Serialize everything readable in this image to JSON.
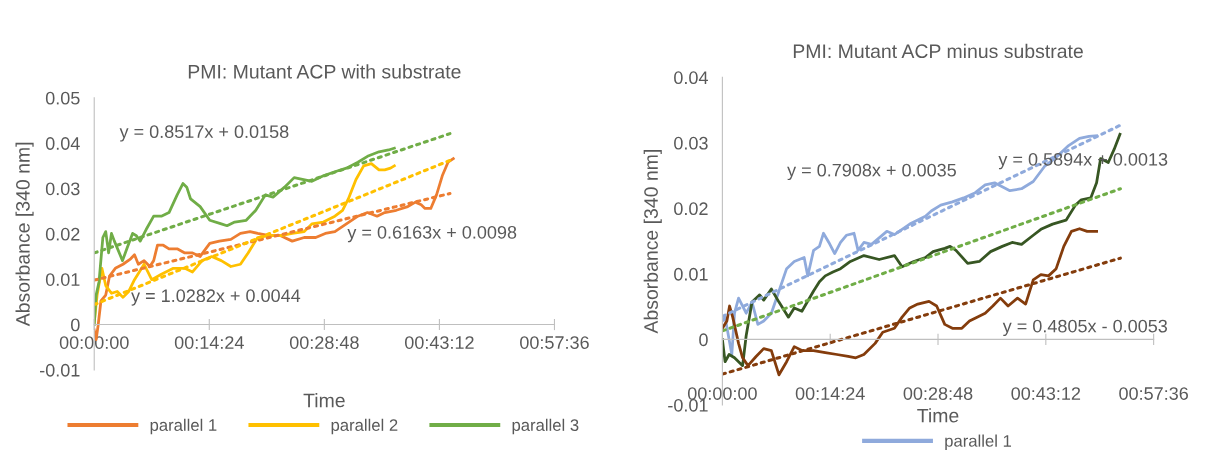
{
  "chart_data": [
    {
      "type": "line",
      "title": "PMI: Mutant ACP with substrate",
      "xlabel": "Time",
      "ylabel": "Absorbance [340 nm]",
      "xlim": [
        0,
        0.96
      ],
      "xticks": [
        {
          "value": 0,
          "label": "00:00:00"
        },
        {
          "value": 0.24,
          "label": "00:14:24"
        },
        {
          "value": 0.48,
          "label": "00:28:48"
        },
        {
          "value": 0.72,
          "label": "00:43:12"
        },
        {
          "value": 0.96,
          "label": "00:57:36"
        }
      ],
      "ylim": [
        -0.01,
        0.05
      ],
      "yticks": [
        -0.01,
        0,
        0.01,
        0.02,
        0.03,
        0.04,
        0.05
      ],
      "legend": "bottom",
      "marker": "none",
      "series": [
        {
          "name": "parallel 1",
          "color": "#ed7d31",
          "x": [
            0,
            0.004,
            0.008,
            0.014,
            0.024,
            0.032,
            0.044,
            0.06,
            0.076,
            0.084,
            0.092,
            0.104,
            0.116,
            0.124,
            0.132,
            0.144,
            0.156,
            0.173,
            0.189,
            0.205,
            0.221,
            0.229,
            0.241,
            0.261,
            0.285,
            0.305,
            0.325,
            0.341,
            0.365,
            0.389,
            0.413,
            0.438,
            0.462,
            0.482,
            0.502,
            0.526,
            0.55,
            0.57,
            0.59,
            0.606,
            0.63,
            0.654,
            0.67,
            0.682,
            0.69,
            0.702,
            0.714,
            0.726,
            0.738,
            0.749
          ],
          "values": [
            -0.0012,
            -0.0033,
            -0.0003,
            0.0052,
            0.0065,
            0.0107,
            0.0124,
            0.0133,
            0.0145,
            0.0154,
            0.0133,
            0.0141,
            0.0128,
            0.0141,
            0.0175,
            0.0175,
            0.0167,
            0.0167,
            0.0158,
            0.0158,
            0.015,
            0.0162,
            0.0179,
            0.0184,
            0.0188,
            0.0201,
            0.0205,
            0.0201,
            0.0196,
            0.0196,
            0.0184,
            0.0192,
            0.0192,
            0.0201,
            0.0205,
            0.0222,
            0.0239,
            0.0247,
            0.0239,
            0.0247,
            0.0252,
            0.026,
            0.027,
            0.0264,
            0.0256,
            0.0256,
            0.0286,
            0.0328,
            0.0358,
            0.0366
          ]
        },
        {
          "name": "parallel 2",
          "color": "#ffc000",
          "x": [
            0,
            0.006,
            0.016,
            0.024,
            0.036,
            0.048,
            0.06,
            0.072,
            0.084,
            0.104,
            0.12,
            0.14,
            0.165,
            0.189,
            0.205,
            0.225,
            0.245,
            0.265,
            0.285,
            0.305,
            0.321,
            0.341,
            0.365,
            0.389,
            0.413,
            0.438,
            0.454,
            0.478,
            0.502,
            0.518,
            0.53,
            0.546,
            0.562,
            0.578,
            0.594,
            0.606,
            0.618,
            0.626
          ],
          "values": [
            0.0005,
            0.0065,
            0.0124,
            0.0086,
            0.0069,
            0.0073,
            0.006,
            0.0073,
            0.0099,
            0.0133,
            0.0099,
            0.0111,
            0.0124,
            0.0124,
            0.0116,
            0.0141,
            0.015,
            0.0141,
            0.0128,
            0.0133,
            0.0158,
            0.0192,
            0.0196,
            0.0196,
            0.0201,
            0.0205,
            0.0222,
            0.0226,
            0.0239,
            0.0252,
            0.0277,
            0.032,
            0.035,
            0.0355,
            0.0341,
            0.0341,
            0.0345,
            0.035
          ]
        },
        {
          "name": "parallel 3",
          "color": "#70ad47",
          "x": [
            0,
            0.004,
            0.01,
            0.018,
            0.024,
            0.03,
            0.036,
            0.042,
            0.059,
            0.068,
            0.08,
            0.088,
            0.096,
            0.108,
            0.124,
            0.14,
            0.156,
            0.173,
            0.185,
            0.193,
            0.201,
            0.221,
            0.241,
            0.265,
            0.277,
            0.293,
            0.317,
            0.337,
            0.357,
            0.373,
            0.397,
            0.417,
            0.454,
            0.478,
            0.502,
            0.526,
            0.55,
            0.57,
            0.594,
            0.614,
            0.626
          ],
          "values": [
            0,
            0.0065,
            0.0094,
            0.0192,
            0.0205,
            0.0158,
            0.0201,
            0.0184,
            0.0141,
            0.0167,
            0.0201,
            0.0196,
            0.0184,
            0.0209,
            0.0239,
            0.0239,
            0.0247,
            0.0286,
            0.0311,
            0.0303,
            0.0277,
            0.026,
            0.023,
            0.0222,
            0.0218,
            0.0226,
            0.023,
            0.0252,
            0.0286,
            0.0281,
            0.0303,
            0.0324,
            0.0316,
            0.0328,
            0.0337,
            0.0345,
            0.0358,
            0.0371,
            0.0381,
            0.0385,
            0.0389
          ]
        },
        {
          "color": "#ed7d31",
          "line_style": "dotted",
          "x": [
            0,
            0.742
          ],
          "values": [
            0.0098,
            0.0289
          ]
        },
        {
          "color": "#ffc000",
          "line_style": "dotted",
          "x": [
            0,
            0.742
          ],
          "values": [
            0.0044,
            0.0362
          ]
        },
        {
          "color": "#70ad47",
          "line_style": "dotted",
          "x": [
            0,
            0.742
          ],
          "values": [
            0.0158,
            0.0421
          ]
        }
      ],
      "annotations": [
        "y = 0.8517x + 0.0158",
        "y = 0.6163x + 0.0098",
        "y = 1.0282x + 0.0044"
      ]
    },
    {
      "type": "line",
      "title": "PMI: Mutant ACP minus substrate",
      "xlabel": "Time",
      "ylabel": "Absorbance [340 nm]",
      "xlim": [
        0,
        0.96
      ],
      "xticks": [
        {
          "value": 0,
          "label": "00:00:00"
        },
        {
          "value": 0.24,
          "label": "00:14:24"
        },
        {
          "value": 0.48,
          "label": "00:28:48"
        },
        {
          "value": 0.72,
          "label": "00:43:12"
        },
        {
          "value": 0.96,
          "label": "00:57:36"
        }
      ],
      "ylim": [
        -0.01,
        0.04
      ],
      "yticks": [
        -0.01,
        0,
        0.01,
        0.02,
        0.03,
        0.04
      ],
      "legend": "bottom",
      "marker": "none",
      "series": [
        {
          "name": "parallel 1",
          "color": "#8faadc",
          "x": [
            0,
            0.006,
            0.021,
            0.027,
            0.036,
            0.053,
            0.066,
            0.079,
            0.092,
            0.109,
            0.126,
            0.143,
            0.16,
            0.182,
            0.19,
            0.203,
            0.216,
            0.225,
            0.237,
            0.25,
            0.263,
            0.276,
            0.293,
            0.302,
            0.315,
            0.332,
            0.366,
            0.383,
            0.4,
            0.417,
            0.452,
            0.465,
            0.486,
            0.512,
            0.537,
            0.563,
            0.585,
            0.606,
            0.64,
            0.666,
            0.692,
            0.717,
            0.743,
            0.769,
            0.795,
            0.816,
            0.833
          ],
          "values": [
            0.0028,
            0.0034,
            -0.0023,
            0.004,
            0.0063,
            0.004,
            0.0057,
            0.0023,
            0.0028,
            0.004,
            0.0074,
            0.0108,
            0.0119,
            0.0125,
            0.0097,
            0.0136,
            0.0142,
            0.0162,
            0.0148,
            0.0131,
            0.0148,
            0.0159,
            0.0162,
            0.0136,
            0.0148,
            0.0145,
            0.0165,
            0.016,
            0.0168,
            0.0176,
            0.0188,
            0.0196,
            0.0205,
            0.021,
            0.0216,
            0.0224,
            0.0236,
            0.0239,
            0.0227,
            0.023,
            0.0241,
            0.0264,
            0.0278,
            0.0295,
            0.0307,
            0.031,
            0.0311
          ]
        },
        {
          "color": "#375623",
          "x": [
            0,
            0.006,
            0.015,
            0.027,
            0.045,
            0.053,
            0.066,
            0.083,
            0.092,
            0.109,
            0.126,
            0.147,
            0.16,
            0.177,
            0.203,
            0.216,
            0.229,
            0.246,
            0.263,
            0.285,
            0.315,
            0.349,
            0.383,
            0.4,
            0.426,
            0.452,
            0.469,
            0.495,
            0.507,
            0.52,
            0.546,
            0.572,
            0.597,
            0.623,
            0.645,
            0.666,
            0.692,
            0.709,
            0.735,
            0.765,
            0.786,
            0.799,
            0.82,
            0.833,
            0.842,
            0.859,
            0.872,
            0.885
          ],
          "values": [
            0,
            -0.0034,
            -0.0023,
            -0.0028,
            -0.004,
            0.0006,
            0.0057,
            0.0068,
            0.006,
            0.0077,
            0.0057,
            0.0034,
            0.0048,
            0.0043,
            0.0074,
            0.0088,
            0.0097,
            0.0103,
            0.0108,
            0.0119,
            0.0128,
            0.0122,
            0.0128,
            0.0111,
            0.0119,
            0.0125,
            0.0134,
            0.0139,
            0.0142,
            0.0136,
            0.0116,
            0.0119,
            0.0134,
            0.0142,
            0.0148,
            0.0145,
            0.0159,
            0.0168,
            0.0176,
            0.0182,
            0.0205,
            0.0213,
            0.0216,
            0.0239,
            0.0276,
            0.027,
            0.029,
            0.0313
          ]
        },
        {
          "color": "#843c0c",
          "x": [
            0,
            0.01,
            0.016,
            0.023,
            0.036,
            0.045,
            0.057,
            0.075,
            0.092,
            0.109,
            0.126,
            0.143,
            0.16,
            0.177,
            0.203,
            0.229,
            0.255,
            0.28,
            0.297,
            0.315,
            0.34,
            0.357,
            0.383,
            0.4,
            0.417,
            0.435,
            0.46,
            0.477,
            0.495,
            0.512,
            0.533,
            0.55,
            0.567,
            0.585,
            0.602,
            0.619,
            0.636,
            0.657,
            0.675,
            0.692,
            0.709,
            0.726,
            0.743,
            0.76,
            0.777,
            0.795,
            0.812,
            0.833
          ],
          "values": [
            0.0017,
            0.0028,
            0.0051,
            0.0034,
            -0.0006,
            -0.0028,
            -0.004,
            -0.0026,
            -0.0014,
            -0.0017,
            -0.0054,
            -0.0034,
            -0.0011,
            -0.0017,
            -0.0017,
            -0.002,
            -0.0023,
            -0.0026,
            -0.0028,
            -0.0023,
            -0.0006,
            0.0011,
            0.0017,
            0.0034,
            0.0048,
            0.0054,
            0.0058,
            0.0051,
            0.0023,
            0.0017,
            0.0017,
            0.0028,
            0.0034,
            0.004,
            0.0051,
            0.0063,
            0.0051,
            0.0063,
            0.0054,
            0.0091,
            0.0099,
            0.0097,
            0.0108,
            0.0142,
            0.0165,
            0.0169,
            0.0165,
            0.0165
          ]
        },
        {
          "color": "#8faadc",
          "line_style": "dotted",
          "x": [
            0,
            0.886
          ],
          "values": [
            0.0035,
            0.0327
          ]
        },
        {
          "color": "#70ad47",
          "line_style": "dotted",
          "x": [
            0,
            0.886
          ],
          "values": [
            0.0013,
            0.023
          ]
        },
        {
          "color": "#843c0c",
          "line_style": "dotted",
          "x": [
            0,
            0.886
          ],
          "values": [
            -0.0053,
            0.0124
          ]
        }
      ],
      "annotations": [
        "y = 0.7908x + 0.0035",
        "y = 0.5894x + 0.0013",
        "y = 0.4805x - 0.0053"
      ]
    }
  ]
}
